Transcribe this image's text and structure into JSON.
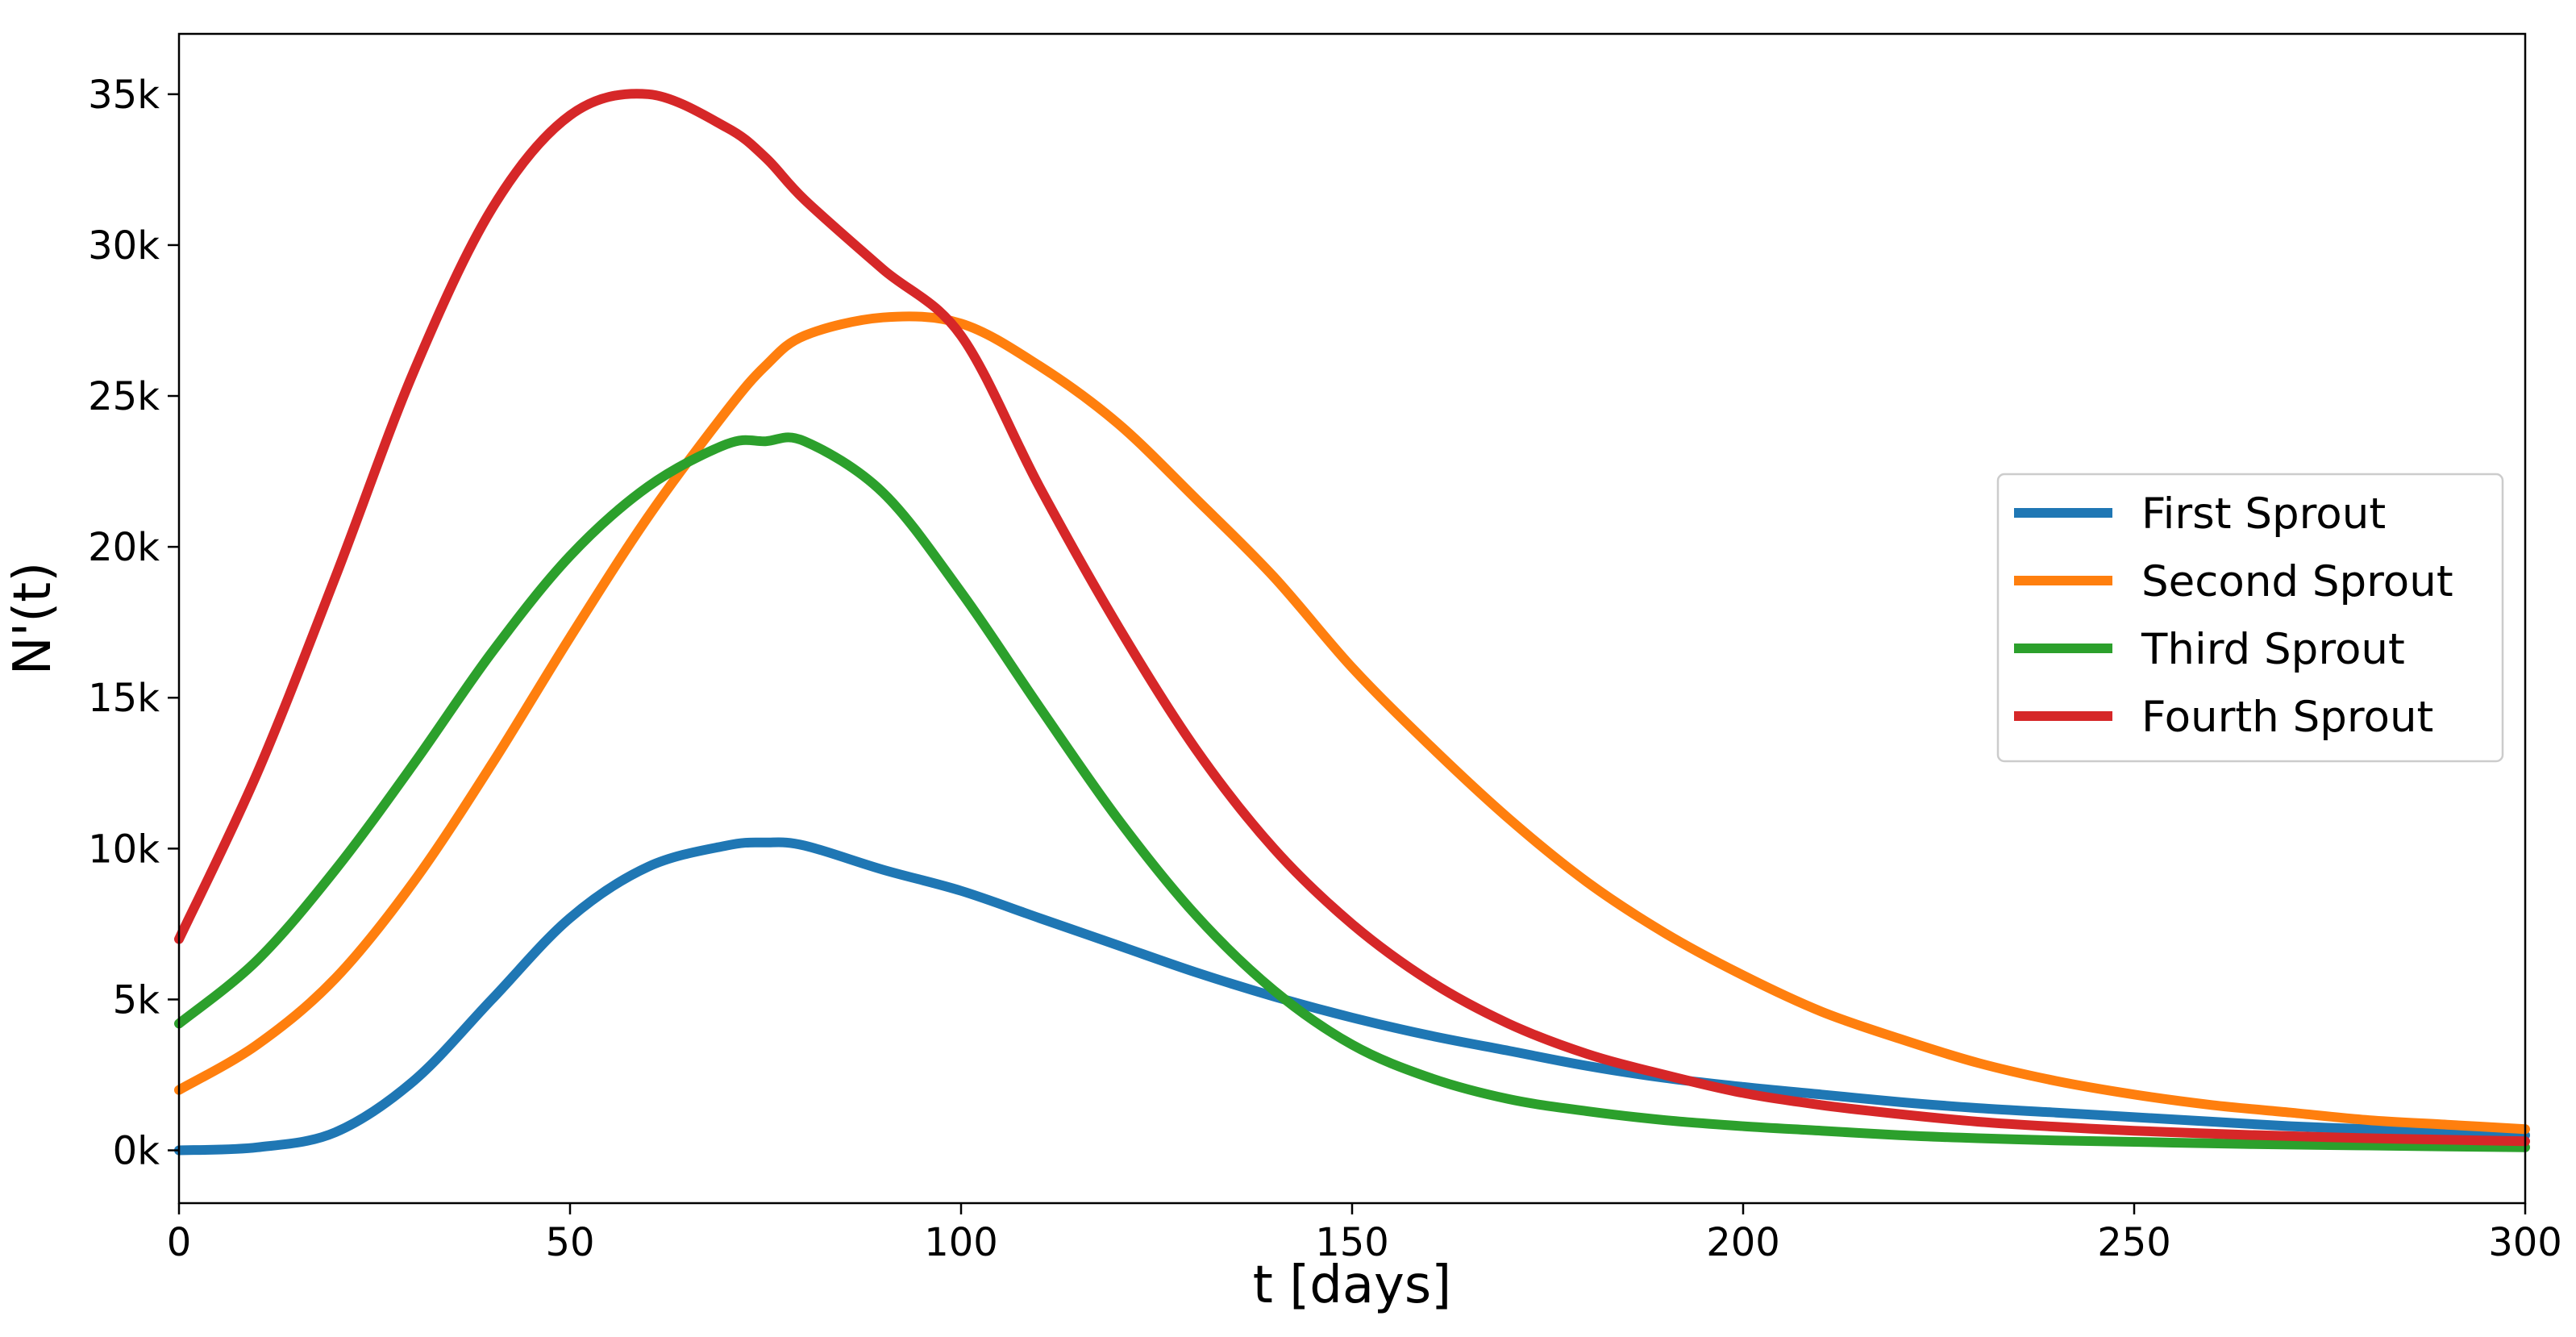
{
  "chart_data": {
    "type": "line",
    "title": "",
    "xlabel": "t [days]",
    "ylabel": "N'(t)",
    "xlim": [
      0,
      300
    ],
    "ylim": [
      -1750,
      37000
    ],
    "grid": false,
    "legend_position": "center-right",
    "x_ticks": [
      0,
      50,
      100,
      150,
      200,
      250,
      300
    ],
    "x_tick_labels": [
      "0",
      "50",
      "100",
      "150",
      "200",
      "250",
      "300"
    ],
    "y_ticks": [
      0,
      5000,
      10000,
      15000,
      20000,
      25000,
      30000,
      35000
    ],
    "y_tick_labels": [
      "0k",
      "5k",
      "10k",
      "15k",
      "20k",
      "25k",
      "30k",
      "35k"
    ],
    "x": [
      0,
      10,
      20,
      30,
      40,
      50,
      60,
      70,
      75,
      80,
      90,
      100,
      110,
      120,
      130,
      140,
      150,
      160,
      170,
      180,
      190,
      200,
      210,
      220,
      230,
      240,
      250,
      260,
      270,
      280,
      290,
      300
    ],
    "series": [
      {
        "name": "First Sprout",
        "color": "#1f77b4",
        "values": [
          0,
          100,
          600,
          2300,
          5000,
          7700,
          9400,
          10100,
          10200,
          10100,
          9300,
          8600,
          7700,
          6800,
          5900,
          5100,
          4400,
          3800,
          3300,
          2800,
          2400,
          2100,
          1850,
          1600,
          1400,
          1250,
          1100,
          950,
          800,
          700,
          600,
          500
        ]
      },
      {
        "name": "Second Sprout",
        "color": "#ff7f0e",
        "values": [
          2000,
          3500,
          5700,
          8900,
          12800,
          17000,
          21000,
          24500,
          26000,
          27000,
          27600,
          27400,
          26000,
          24100,
          21600,
          19000,
          16000,
          13400,
          11000,
          8900,
          7200,
          5800,
          4600,
          3700,
          2900,
          2300,
          1850,
          1500,
          1250,
          1000,
          850,
          700
        ]
      },
      {
        "name": "Third Sprout",
        "color": "#2ca02c",
        "values": [
          4200,
          6300,
          9300,
          12800,
          16500,
          19700,
          22000,
          23400,
          23500,
          23500,
          21800,
          18500,
          14700,
          11000,
          7800,
          5300,
          3500,
          2400,
          1700,
          1300,
          1000,
          800,
          650,
          500,
          400,
          330,
          280,
          230,
          190,
          160,
          130,
          100
        ]
      },
      {
        "name": "Fourth Sprout",
        "color": "#d62728",
        "values": [
          7000,
          12500,
          19000,
          25800,
          31200,
          34300,
          35000,
          33900,
          32900,
          31500,
          29200,
          27000,
          22000,
          17400,
          13300,
          10000,
          7500,
          5600,
          4200,
          3200,
          2500,
          1900,
          1500,
          1200,
          950,
          780,
          650,
          550,
          470,
          400,
          350,
          300
        ]
      }
    ]
  }
}
